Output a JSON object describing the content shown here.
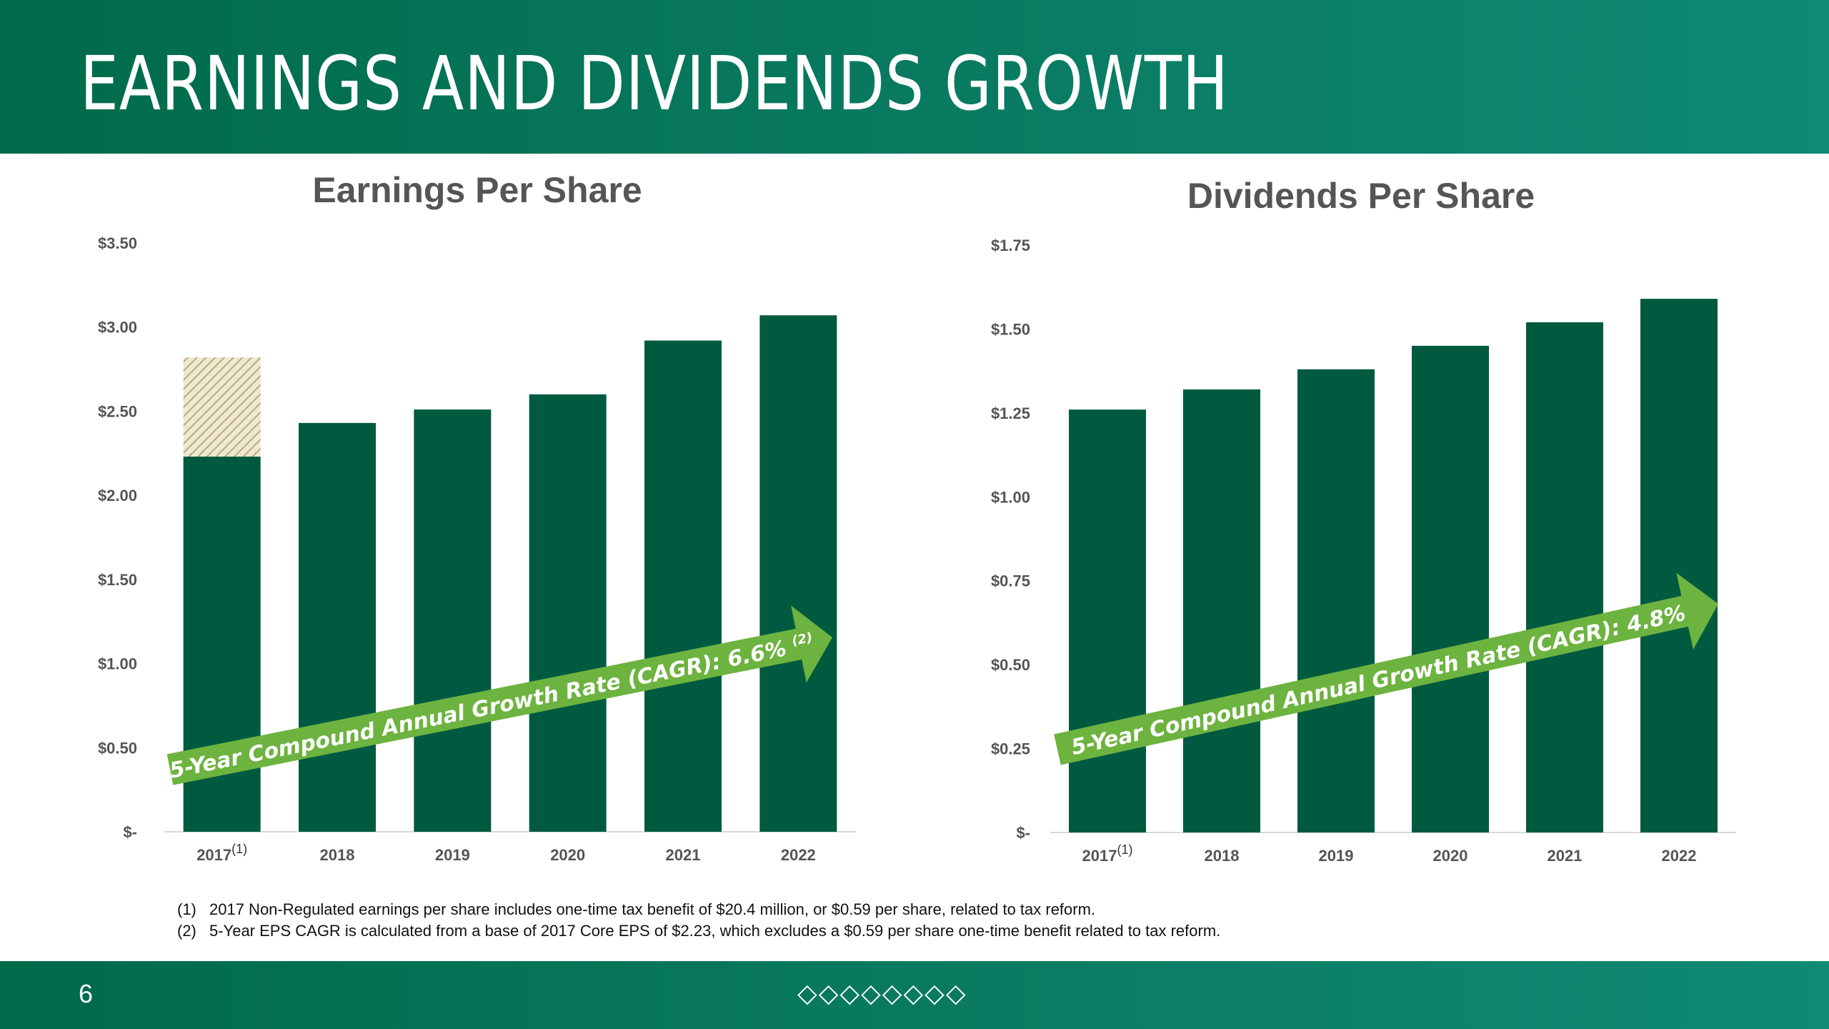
{
  "title": "EARNINGS AND DIVIDENDS GROWTH",
  "page_number": "6",
  "footer_marks": [
    "◇",
    "◇",
    "◇",
    "◇",
    "◇",
    "◇",
    "◇",
    "◇"
  ],
  "colors": {
    "bar": "#005a40",
    "arrow": "#6db33f",
    "header": "#006b4a",
    "hatch": "#b9ac7a"
  },
  "footnotes": [
    {
      "num": "(1)",
      "text": "2017 Non-Regulated earnings per share includes one-time tax benefit of $20.4 million, or $0.59  per share, related to tax reform."
    },
    {
      "num": "(2)",
      "text": "5-Year EPS CAGR is calculated from a base of 2017 Core EPS of $2.23,  which excludes a $0.59  per share one-time benefit related to tax reform."
    }
  ],
  "chart_data": [
    {
      "type": "bar",
      "title": "Earnings Per Share",
      "categories": [
        "2017",
        "2018",
        "2019",
        "2020",
        "2021",
        "2022"
      ],
      "category_superscripts": [
        "(1)",
        "",
        "",
        "",
        "",
        ""
      ],
      "values": [
        2.23,
        2.43,
        2.51,
        2.6,
        2.92,
        3.07
      ],
      "stacked_extra": {
        "category": "2017",
        "value": 0.59,
        "style": "hatched",
        "total": 2.82
      },
      "ylim": [
        0,
        3.5
      ],
      "yticks": [
        0,
        0.5,
        1.0,
        1.5,
        2.0,
        2.5,
        3.0,
        3.5
      ],
      "ytick_labels": [
        "$-",
        "$0.50",
        "$1.00",
        "$1.50",
        "$2.00",
        "$2.50",
        "$3.00",
        "$3.50"
      ],
      "annotation": {
        "text": "5-Year Compound Annual Growth Rate (CAGR): 6.6%",
        "superscript": "(2)"
      },
      "xlabel": "",
      "ylabel": "",
      "grid": false
    },
    {
      "type": "bar",
      "title": "Dividends Per Share",
      "categories": [
        "2017",
        "2018",
        "2019",
        "2020",
        "2021",
        "2022"
      ],
      "category_superscripts": [
        "(1)",
        "",
        "",
        "",
        "",
        ""
      ],
      "values": [
        1.26,
        1.32,
        1.38,
        1.45,
        1.52,
        1.59
      ],
      "ylim": [
        0,
        1.75
      ],
      "yticks": [
        0,
        0.25,
        0.5,
        0.75,
        1.0,
        1.25,
        1.5,
        1.75
      ],
      "ytick_labels": [
        "$-",
        "$0.25",
        "$0.50",
        "$0.75",
        "$1.00",
        "$1.25",
        "$1.50",
        "$1.75"
      ],
      "annotation": {
        "text": "5-Year Compound Annual Growth Rate (CAGR): 4.8%",
        "superscript": ""
      },
      "xlabel": "",
      "ylabel": "",
      "grid": false
    }
  ]
}
